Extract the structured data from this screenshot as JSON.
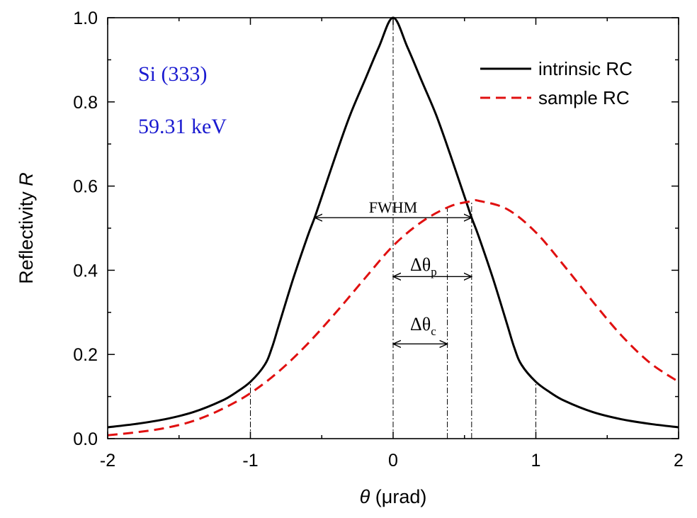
{
  "chart_data": {
    "type": "line",
    "xlabel_symbol": "θ",
    "xlabel_unit": " (μrad)",
    "ylabel_text": "Reflectivity ",
    "ylabel_symbol": "R",
    "xlim": [
      -2,
      2
    ],
    "ylim": [
      0,
      1.0
    ],
    "x_ticks": [
      -2,
      -1,
      0,
      1,
      2
    ],
    "x_tick_labels": [
      "-2",
      "-1",
      "0",
      "1",
      "2"
    ],
    "y_ticks": [
      0,
      0.2,
      0.4,
      0.6,
      0.8,
      1.0
    ],
    "y_tick_labels": [
      "0.0",
      "0.2",
      "0.4",
      "0.6",
      "0.8",
      "1.0"
    ],
    "legend_position": "top-right",
    "series": [
      {
        "name": "intrinsic RC",
        "color": "#000000",
        "style": "solid",
        "x": [
          -2,
          -1.8,
          -1.6,
          -1.4,
          -1.2,
          -1.1,
          -1.0,
          -0.9,
          -0.85,
          -0.8,
          -0.7,
          -0.6,
          -0.55,
          -0.5,
          -0.4,
          -0.3,
          -0.2,
          -0.1,
          0,
          0.1,
          0.2,
          0.3,
          0.4,
          0.5,
          0.55,
          0.6,
          0.7,
          0.8,
          0.85,
          0.9,
          1.0,
          1.1,
          1.2,
          1.4,
          1.6,
          1.8,
          2.0
        ],
        "y": [
          0.027,
          0.035,
          0.046,
          0.063,
          0.09,
          0.11,
          0.135,
          0.175,
          0.215,
          0.27,
          0.38,
          0.48,
          0.525,
          0.575,
          0.675,
          0.77,
          0.85,
          0.93,
          1.0,
          0.93,
          0.85,
          0.77,
          0.675,
          0.575,
          0.525,
          0.48,
          0.38,
          0.27,
          0.215,
          0.175,
          0.135,
          0.11,
          0.09,
          0.063,
          0.046,
          0.035,
          0.027
        ]
      },
      {
        "name": "sample RC",
        "color": "#e01010",
        "style": "dashed",
        "x": [
          -2,
          -1.8,
          -1.6,
          -1.4,
          -1.2,
          -1.0,
          -0.8,
          -0.6,
          -0.4,
          -0.2,
          0,
          0.2,
          0.4,
          0.55,
          0.6,
          0.8,
          1.0,
          1.2,
          1.4,
          1.6,
          1.8,
          2.0
        ],
        "y": [
          0.008,
          0.015,
          0.025,
          0.042,
          0.07,
          0.108,
          0.16,
          0.225,
          0.3,
          0.38,
          0.458,
          0.515,
          0.552,
          0.564,
          0.565,
          0.545,
          0.49,
          0.41,
          0.325,
          0.245,
          0.18,
          0.135
        ]
      }
    ],
    "guide_lines_x": [
      -1.0,
      0,
      0.38,
      0.55,
      1.0
    ],
    "guide_lines_y_top": [
      0.135,
      1.0,
      0.55,
      0.565,
      0.135
    ],
    "annotations": {
      "material": "Si (333)",
      "energy": "59.31 keV",
      "fwhm": "FWHM",
      "delta_p_base": "Δθ",
      "delta_p_sub": "p",
      "delta_c_base": "Δθ",
      "delta_c_sub": "c"
    },
    "arrows": [
      {
        "name": "fwhm",
        "x1": -0.55,
        "x2": 0.55,
        "y": 0.525
      },
      {
        "name": "delta-p",
        "x1": 0,
        "x2": 0.55,
        "y": 0.385
      },
      {
        "name": "delta-c",
        "x1": 0,
        "x2": 0.38,
        "y": 0.225
      }
    ]
  }
}
